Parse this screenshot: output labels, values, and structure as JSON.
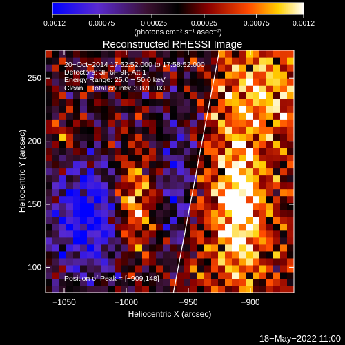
{
  "chart_data": {
    "type": "heatmap",
    "title": "Reconstructed RHESSI Image",
    "xlabel": "Heliocentric X (arcsec)",
    "ylabel": "Heliocentric Y (arcsec)",
    "xlim": [
      -1065,
      -865
    ],
    "ylim": [
      80,
      272
    ],
    "x_ticks": [
      -1050,
      -1000,
      -950,
      -900
    ],
    "x_tick_labels": [
      "−1050",
      "−1000",
      "−950",
      "−900"
    ],
    "y_ticks": [
      100,
      150,
      200,
      250
    ],
    "y_tick_labels": [
      "100",
      "150",
      "200",
      "250"
    ],
    "colorbar": {
      "range": [
        -0.0012,
        0.0012
      ],
      "ticks": [
        -0.0012,
        -0.00075,
        -0.00025,
        0.00025,
        0.00075,
        0.0012
      ],
      "tick_labels": [
        "−0.0012",
        "−0.00075",
        "−0.00025",
        "0.00025",
        "0.00075",
        "0.0012"
      ],
      "unit_label": "(photons cm⁻² s⁻¹ asec⁻²)"
    },
    "annotations": [
      "20−Oct−2014 17:52:52.000 to 17:58:52.000",
      "Detectors: 3F 6F 9F, Att 1",
      "Energy Range: 25.0 − 50.0 keV",
      "Clean    Total counts: 3.87E+03"
    ],
    "peak_label": "Position of Peak = [−909,148]",
    "peak": [
      -909,
      148
    ],
    "limb_x_at_ylim": [
      -962,
      -925
    ],
    "grid": false,
    "legend": "none"
  },
  "footer": {
    "timestamp": "18−May−2022 11:00"
  }
}
